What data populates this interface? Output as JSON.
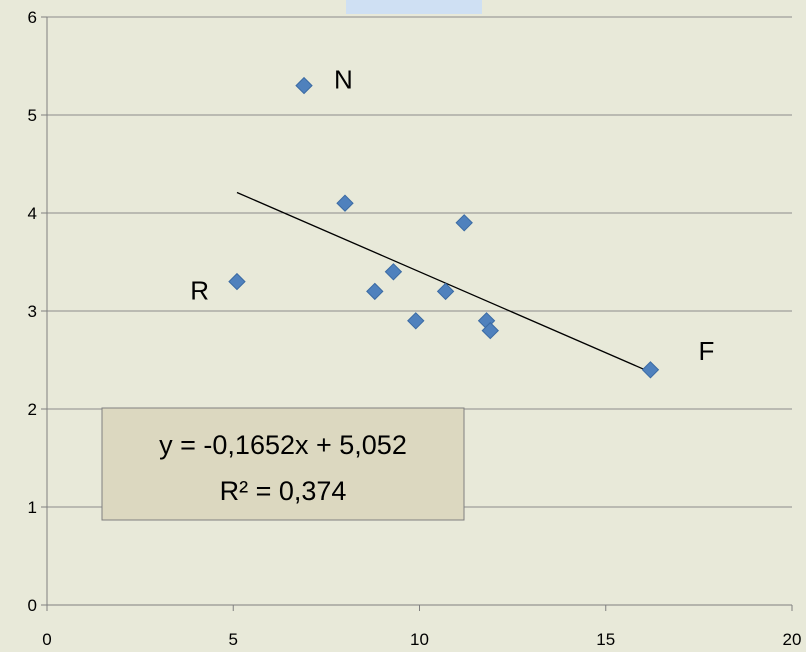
{
  "chart_data": {
    "type": "scatter",
    "xlim": [
      0,
      20
    ],
    "ylim": [
      0,
      6
    ],
    "x_ticks": [
      "0",
      "5",
      "10",
      "15",
      "20"
    ],
    "y_ticks": [
      "0",
      "1",
      "2",
      "3",
      "4",
      "5",
      "6"
    ],
    "grid": "horizontal",
    "legend": "none",
    "series": [
      {
        "points": [
          {
            "x": 6.9,
            "y": 5.3,
            "label": "N"
          },
          {
            "x": 5.1,
            "y": 3.3,
            "label": "R"
          },
          {
            "x": 8.0,
            "y": 4.1
          },
          {
            "x": 9.3,
            "y": 3.4
          },
          {
            "x": 8.8,
            "y": 3.2
          },
          {
            "x": 9.9,
            "y": 2.9
          },
          {
            "x": 10.7,
            "y": 3.2
          },
          {
            "x": 11.2,
            "y": 3.9
          },
          {
            "x": 11.8,
            "y": 2.9
          },
          {
            "x": 11.9,
            "y": 2.8
          },
          {
            "x": 16.2,
            "y": 2.4,
            "label": "F"
          }
        ]
      }
    ],
    "trendline": {
      "slope": -0.1652,
      "intercept": 5.052,
      "x_range": [
        5.1,
        16.2
      ],
      "equation_text": "y = -0,1652x + 5,052",
      "r2_text": "R² = 0,374"
    }
  },
  "colors": {
    "background": "#e8e9d9",
    "marker": "#4f81bd",
    "marker_stroke": "#3a6aa3",
    "gridline": "#8c8c8c",
    "axis": "#7f7f7f",
    "trendline": "#000000",
    "equation_box_fill": "#dcd8c0",
    "equation_box_stroke": "#7f7f7f",
    "top_tab": "#cfe0f3"
  }
}
